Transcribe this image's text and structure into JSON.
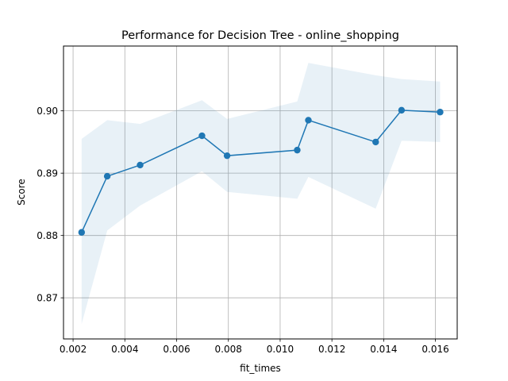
{
  "chart_data": {
    "type": "line",
    "title": "Performance for Decision Tree - online_shopping",
    "xlabel": "fit_times",
    "ylabel": "Score",
    "xlim": [
      0.00163,
      0.01684
    ],
    "ylim": [
      0.8634,
      0.9104
    ],
    "xticks": [
      0.002,
      0.004,
      0.006,
      0.008,
      0.01,
      0.012,
      0.014,
      0.016
    ],
    "xtick_labels": [
      "0.002",
      "0.004",
      "0.006",
      "0.008",
      "0.010",
      "0.012",
      "0.014",
      "0.016"
    ],
    "yticks": [
      0.87,
      0.88,
      0.89,
      0.9
    ],
    "ytick_labels": [
      "0.87",
      "0.88",
      "0.89",
      "0.90"
    ],
    "grid": true,
    "color": "#1f77b4",
    "band_color": "#1f77b4",
    "band_opacity": 0.1,
    "series": [
      {
        "x": [
          0.00233,
          0.00332,
          0.00459,
          0.00698,
          0.00795,
          0.01066,
          0.01109,
          0.01369,
          0.01469,
          0.01618
        ],
        "values": [
          0.8805,
          0.8895,
          0.8913,
          0.896,
          0.8928,
          0.8937,
          0.8985,
          0.895,
          0.9001,
          0.8998
        ],
        "upper": [
          0.8955,
          0.8985,
          0.8979,
          0.9017,
          0.8987,
          0.9015,
          0.9077,
          0.9057,
          0.9051,
          0.9047
        ],
        "lower": [
          0.8658,
          0.8808,
          0.8848,
          0.8903,
          0.887,
          0.8859,
          0.8894,
          0.8843,
          0.8952,
          0.895
        ]
      }
    ]
  }
}
